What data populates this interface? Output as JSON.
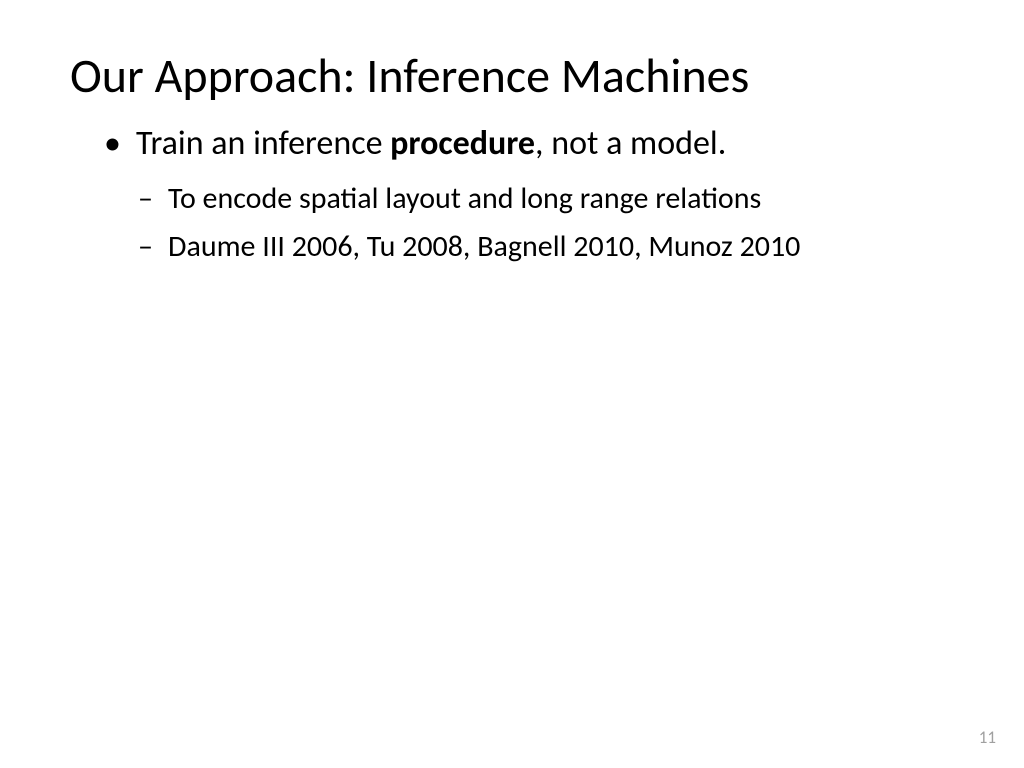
{
  "slide": {
    "title": "Our Approach: Inference Machines",
    "bullet1_prefix": "Train an inference ",
    "bullet1_bold": "procedure",
    "bullet1_suffix": ", not a model.",
    "bullet1a": "To encode spatial layout and long range relations",
    "bullet1b": "Daume III 2006, Tu 2008, Bagnell 2010, Munoz 2010",
    "page_number": "11"
  },
  "styling": {
    "background_color": "#ffffff",
    "text_color": "#000000",
    "page_number_color": "#a0a0a0",
    "title_fontsize": 48,
    "bullet_l1_fontsize": 34,
    "bullet_l2_fontsize": 30,
    "page_number_fontsize": 17,
    "font_family": "Calibri"
  }
}
